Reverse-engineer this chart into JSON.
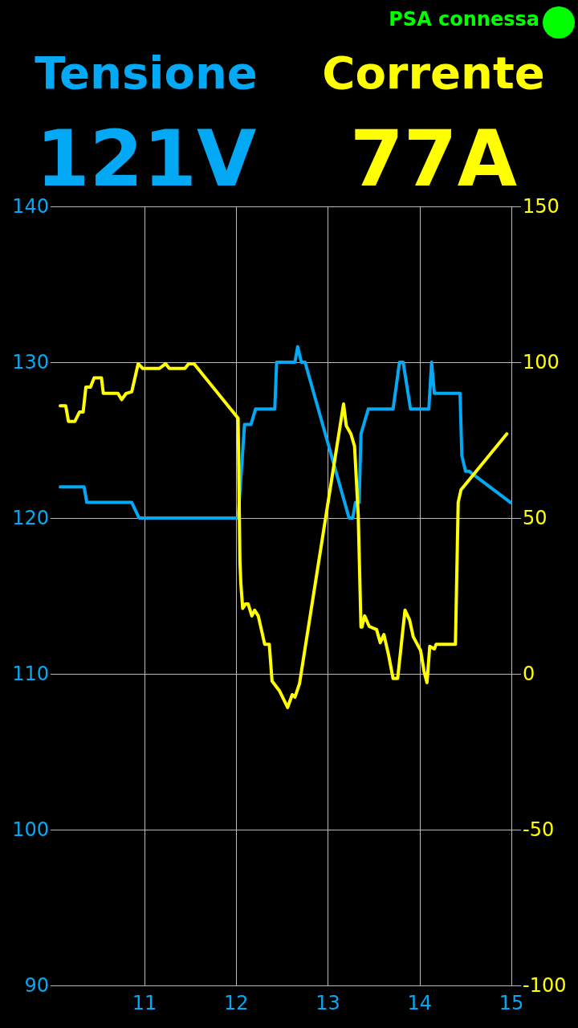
{
  "chart_data": {
    "type": "line",
    "annotations": [
      "PSA connessa",
      "121V",
      "77A"
    ],
    "xlim": [
      10.08,
      15
    ],
    "xticks": [
      11,
      12,
      13,
      14,
      15
    ],
    "ylim": [
      90,
      140
    ],
    "yticks": [
      90,
      100,
      110,
      120,
      130,
      140
    ],
    "y2lim": [
      -100,
      150
    ],
    "y2ticks": [
      -100,
      -50,
      0,
      50,
      100,
      150
    ],
    "grid": true,
    "marker": "none",
    "line_style": "solid",
    "series": [
      {
        "name": "Tensione",
        "color": "#03a9f4",
        "x": [
          10.08,
          10.34,
          10.37,
          10.86,
          10.94,
          12.02,
          12.09,
          12.16,
          12.21,
          12.42,
          12.44,
          12.64,
          12.67,
          12.71,
          12.75,
          13.23,
          13.27,
          13.3,
          13.34,
          13.36,
          13.44,
          13.71,
          13.78,
          13.82,
          13.9,
          14.1,
          14.13,
          14.16,
          14.44,
          14.46,
          14.5,
          14.54,
          14.99
        ],
        "values": [
          122,
          122,
          121,
          121,
          120,
          120,
          126,
          126,
          127,
          127,
          130,
          130,
          131,
          130,
          130,
          120,
          120,
          121,
          121,
          125.4,
          127,
          127,
          130,
          130,
          127,
          127,
          130,
          128,
          128,
          124,
          123,
          123,
          121
        ]
      },
      {
        "name": "Corrente",
        "color": "#ffff00",
        "axis": "y2",
        "x": [
          10.08,
          10.14,
          10.17,
          10.24,
          10.29,
          10.33,
          10.36,
          10.41,
          10.45,
          10.53,
          10.55,
          10.71,
          10.75,
          10.8,
          10.86,
          10.93,
          10.98,
          11.16,
          11.23,
          11.27,
          11.44,
          11.48,
          11.54,
          12.02,
          12.04,
          12.05,
          12.07,
          12.1,
          12.13,
          12.17,
          12.2,
          12.24,
          12.31,
          12.36,
          12.39,
          12.47,
          12.56,
          12.61,
          12.64,
          12.69,
          13.17,
          13.2,
          13.25,
          13.29,
          13.33,
          13.36,
          13.37,
          13.4,
          13.45,
          13.53,
          13.57,
          13.61,
          13.66,
          13.71,
          13.76,
          13.84,
          13.89,
          13.93,
          14.01,
          14.05,
          14.08,
          14.11,
          14.16,
          14.18,
          14.39,
          14.42,
          14.45,
          14.95
        ],
        "values": [
          86,
          86,
          81,
          81,
          84,
          84,
          92,
          92,
          95,
          95,
          90,
          90,
          88,
          90,
          90.5,
          99.5,
          98,
          98,
          99.5,
          98,
          98,
          99.5,
          99.5,
          82,
          36,
          29,
          21,
          22.4,
          22.4,
          18.6,
          20.4,
          18.6,
          9.5,
          9.5,
          -2.3,
          -5.4,
          -10.8,
          -6.7,
          -7.5,
          -3.1,
          86.6,
          79.6,
          77,
          73,
          51,
          15,
          15,
          18.6,
          15.2,
          14.2,
          10,
          12.6,
          6.2,
          -1.5,
          -1.5,
          20.4,
          17.3,
          11.9,
          7.5,
          0.5,
          -2.8,
          8.8,
          8,
          9.5,
          9.5,
          55,
          59,
          77
        ]
      }
    ]
  }
}
